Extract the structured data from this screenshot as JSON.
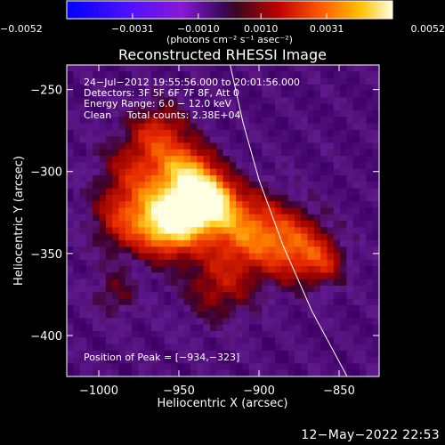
{
  "chart_data": {
    "type": "heatmap",
    "title": "Reconstructed RHESSI Image",
    "xlabel": "Heliocentric X (arcsec)",
    "ylabel": "Heliocentric Y (arcsec)",
    "xlim": [
      -1020,
      -825
    ],
    "ylim": [
      -425,
      -235
    ],
    "xticks": [
      -1000,
      -950,
      -900,
      -850
    ],
    "xtick_labels": [
      "−1000",
      "−950",
      "−900",
      "−850"
    ],
    "yticks": [
      -250,
      -300,
      -350,
      -400
    ],
    "ytick_labels": [
      "−250",
      "−300",
      "−350",
      "−400"
    ],
    "colorbar": {
      "min": -0.0052,
      "max": 0.0052,
      "ticks": [
        -0.0052,
        -0.0031,
        -0.001,
        0.001,
        0.0031,
        0.0052
      ],
      "tick_labels": [
        "−0.0052",
        "−0.0031",
        "−0.0010",
        "0.0010",
        "0.0031",
        "0.0052"
      ],
      "units_label": "(photons cm⁻² s⁻¹ asec⁻²)"
    },
    "info_lines": [
      "24−Jul−2012 19:55:56.000 to 20:01:56.000",
      "Detectors: 3F 5F 6F 7F 8F, Att 0",
      "Energy Range: 6.0 − 12.0 keV",
      "Clean     Total counts: 2.38E+04"
    ],
    "peak_text": "Position of Peak = [−934,−323]",
    "peak": {
      "x": -934,
      "y": -323
    },
    "sources": [
      {
        "x": -955,
        "y": -330,
        "sigma": 14,
        "amp": 1.0
      },
      {
        "x": -932,
        "y": -318,
        "sigma": 11,
        "amp": 0.95
      },
      {
        "x": -945,
        "y": -300,
        "sigma": 12,
        "amp": 0.6
      },
      {
        "x": -962,
        "y": -275,
        "sigma": 12,
        "amp": 0.35
      },
      {
        "x": -910,
        "y": -335,
        "sigma": 16,
        "amp": 0.55
      },
      {
        "x": -880,
        "y": -345,
        "sigma": 15,
        "amp": 0.5
      },
      {
        "x": -860,
        "y": -355,
        "sigma": 10,
        "amp": 0.3
      },
      {
        "x": -985,
        "y": -330,
        "sigma": 14,
        "amp": 0.35
      },
      {
        "x": -975,
        "y": -300,
        "sigma": 16,
        "amp": 0.35
      },
      {
        "x": -925,
        "y": -370,
        "sigma": 15,
        "amp": 0.3
      },
      {
        "x": -990,
        "y": -375,
        "sigma": 10,
        "amp": 0.2
      }
    ],
    "limb_curve": [
      {
        "x": -918,
        "y": -235
      },
      {
        "x": -910,
        "y": -270
      },
      {
        "x": -900,
        "y": -305
      },
      {
        "x": -885,
        "y": -345
      },
      {
        "x": -867,
        "y": -385
      },
      {
        "x": -845,
        "y": -425
      }
    ],
    "colors": {
      "background": "#000000",
      "limb_line": "#ffffff",
      "text": "#ffffff"
    }
  },
  "footer_timestamp": "12−May−2022 22:53"
}
